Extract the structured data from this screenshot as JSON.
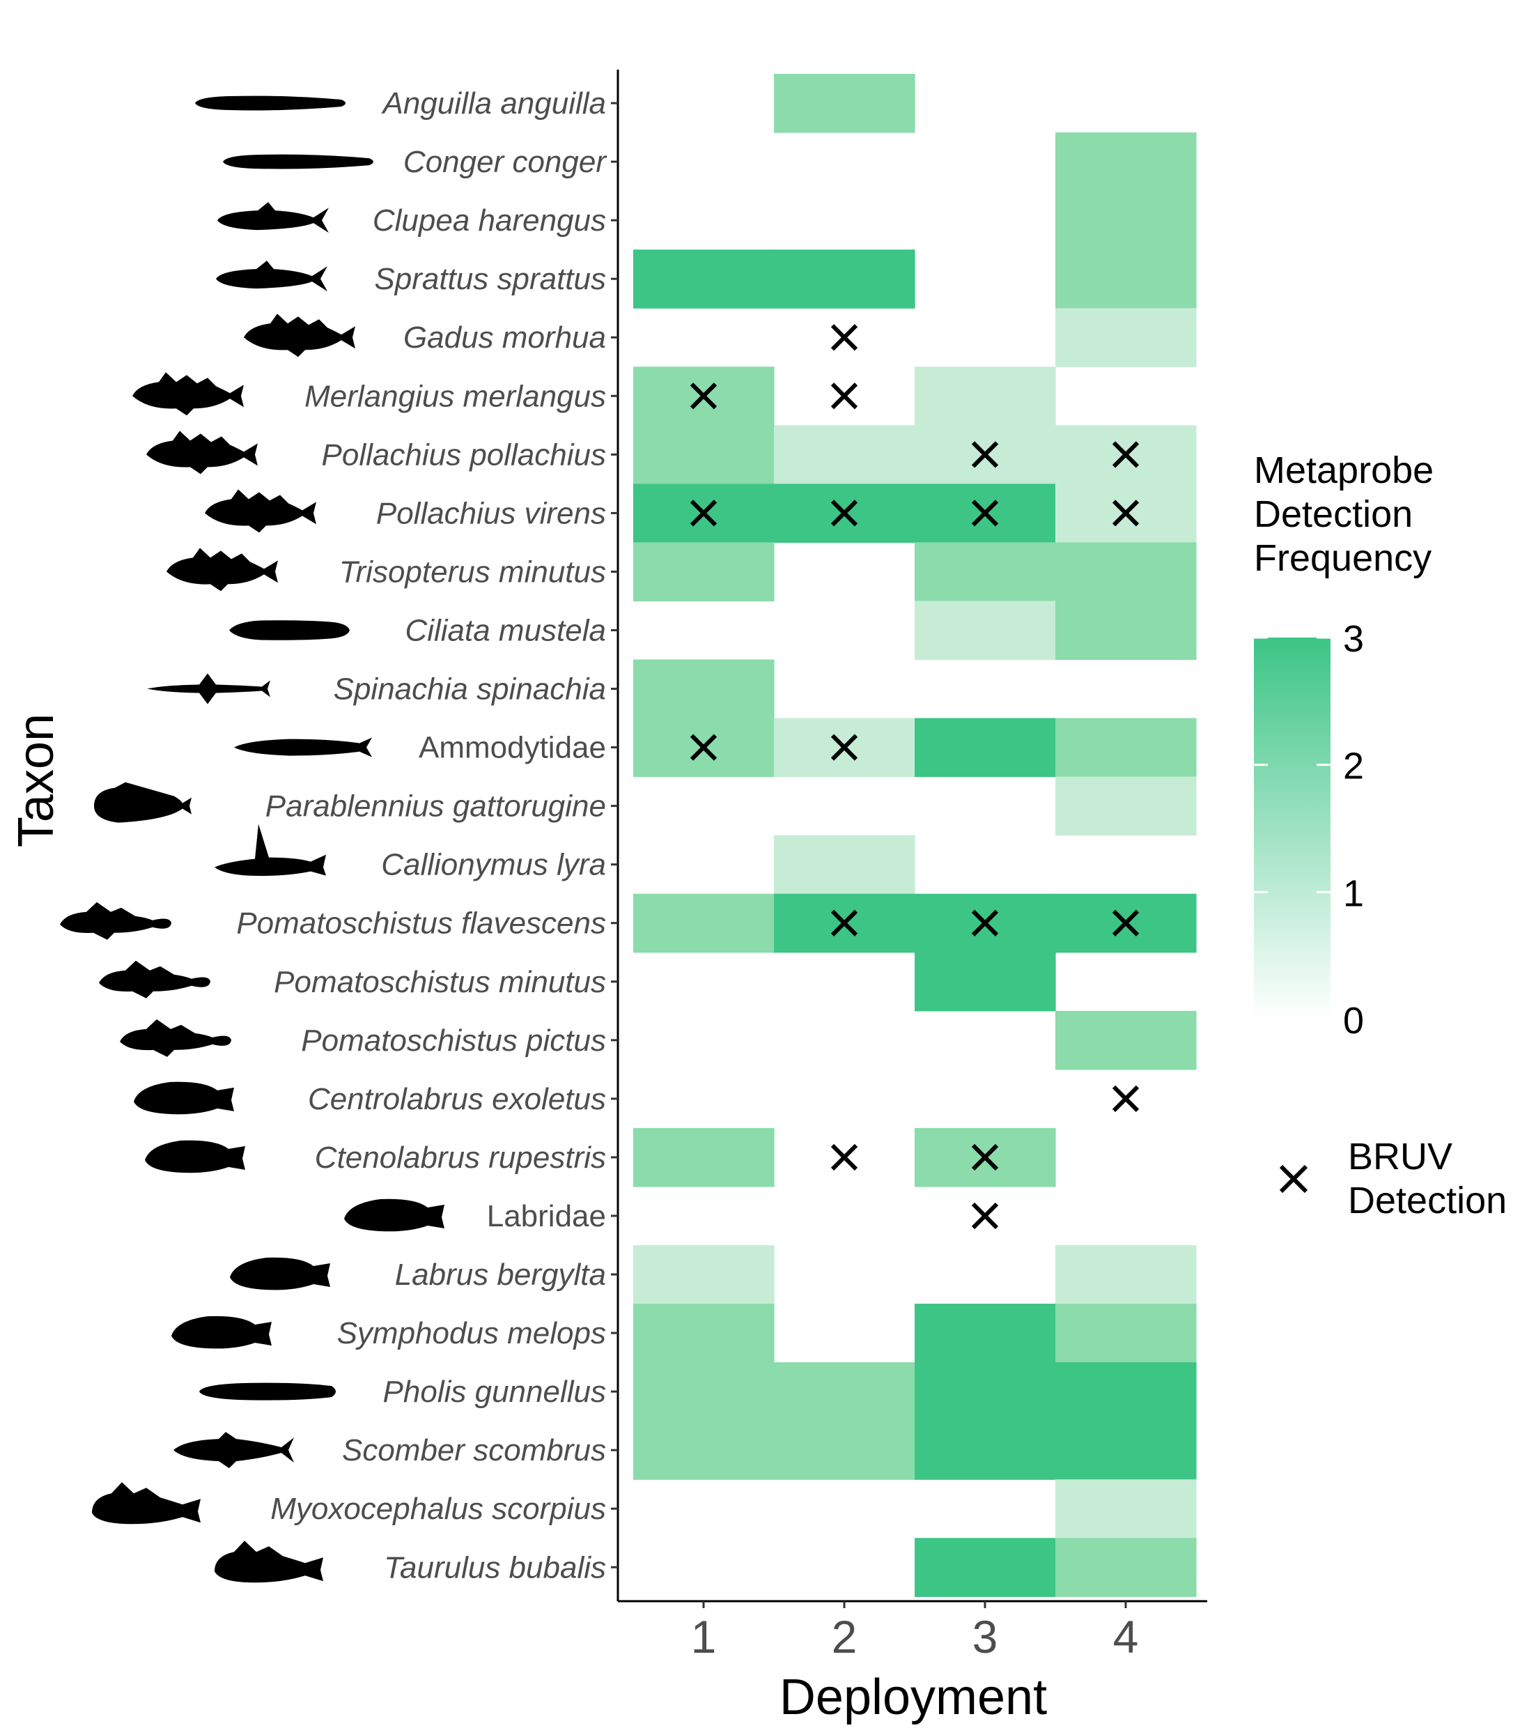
{
  "chart_data": {
    "type": "heatmap",
    "title": "",
    "xlabel": "Deployment",
    "ylabel": "Taxon",
    "x_categories": [
      "1",
      "2",
      "3",
      "4"
    ],
    "taxa": [
      {
        "name": "Anguilla anguilla",
        "italic": true,
        "silhouette": "eel-icon"
      },
      {
        "name": "Conger conger",
        "italic": true,
        "silhouette": "eel-icon"
      },
      {
        "name": "Clupea harengus",
        "italic": true,
        "silhouette": "herring-icon"
      },
      {
        "name": "Sprattus sprattus",
        "italic": true,
        "silhouette": "herring-icon"
      },
      {
        "name": "Gadus morhua",
        "italic": true,
        "silhouette": "cod-icon"
      },
      {
        "name": "Merlangius merlangus",
        "italic": true,
        "silhouette": "cod-icon"
      },
      {
        "name": "Pollachius pollachius",
        "italic": true,
        "silhouette": "cod-icon"
      },
      {
        "name": "Pollachius virens",
        "italic": true,
        "silhouette": "cod-icon"
      },
      {
        "name": "Trisopterus minutus",
        "italic": true,
        "silhouette": "cod-icon"
      },
      {
        "name": "Ciliata mustela",
        "italic": true,
        "silhouette": "rockling-icon"
      },
      {
        "name": "Spinachia spinachia",
        "italic": true,
        "silhouette": "stickleback-icon"
      },
      {
        "name": "Ammodytidae",
        "italic": false,
        "silhouette": "sandeel-icon"
      },
      {
        "name": "Parablennius gattorugine",
        "italic": true,
        "silhouette": "blenny-icon"
      },
      {
        "name": "Callionymus lyra",
        "italic": true,
        "silhouette": "dragonet-icon"
      },
      {
        "name": "Pomatoschistus flavescens",
        "italic": true,
        "silhouette": "goby-icon"
      },
      {
        "name": "Pomatoschistus minutus",
        "italic": true,
        "silhouette": "goby-icon"
      },
      {
        "name": "Pomatoschistus pictus",
        "italic": true,
        "silhouette": "goby-icon"
      },
      {
        "name": "Centrolabrus exoletus",
        "italic": true,
        "silhouette": "wrasse-icon"
      },
      {
        "name": "Ctenolabrus rupestris",
        "italic": true,
        "silhouette": "wrasse-icon"
      },
      {
        "name": "Labridae",
        "italic": false,
        "silhouette": "wrasse-icon"
      },
      {
        "name": "Labrus bergylta",
        "italic": true,
        "silhouette": "wrasse-icon"
      },
      {
        "name": "Symphodus melops",
        "italic": true,
        "silhouette": "wrasse-icon"
      },
      {
        "name": "Pholis gunnellus",
        "italic": true,
        "silhouette": "butterfish-icon"
      },
      {
        "name": "Scomber scombrus",
        "italic": true,
        "silhouette": "mackerel-icon"
      },
      {
        "name": "Myoxocephalus scorpius",
        "italic": true,
        "silhouette": "sculpin-icon"
      },
      {
        "name": "Taurulus bubalis",
        "italic": true,
        "silhouette": "sculpin-icon"
      }
    ],
    "values": [
      [
        0,
        2,
        0,
        0
      ],
      [
        0,
        0,
        0,
        2
      ],
      [
        0,
        0,
        0,
        2
      ],
      [
        3,
        3,
        0,
        2
      ],
      [
        0,
        0,
        0,
        1
      ],
      [
        2,
        0,
        1,
        0
      ],
      [
        2,
        1,
        1,
        1
      ],
      [
        3,
        3,
        3,
        1
      ],
      [
        2,
        0,
        2,
        2
      ],
      [
        0,
        0,
        1,
        2
      ],
      [
        2,
        0,
        0,
        0
      ],
      [
        2,
        1,
        3,
        2
      ],
      [
        0,
        0,
        0,
        1
      ],
      [
        0,
        1,
        0,
        0
      ],
      [
        2,
        3,
        3,
        3
      ],
      [
        0,
        0,
        3,
        0
      ],
      [
        0,
        0,
        0,
        2
      ],
      [
        0,
        0,
        0,
        0
      ],
      [
        2,
        0,
        2,
        0
      ],
      [
        0,
        0,
        0,
        0
      ],
      [
        1,
        0,
        0,
        1
      ],
      [
        2,
        0,
        3,
        2
      ],
      [
        2,
        2,
        3,
        3
      ],
      [
        2,
        2,
        3,
        3
      ],
      [
        0,
        0,
        0,
        1
      ],
      [
        0,
        0,
        3,
        2
      ]
    ],
    "bruv_detections": [
      [
        0,
        0,
        0,
        0
      ],
      [
        0,
        0,
        0,
        0
      ],
      [
        0,
        0,
        0,
        0
      ],
      [
        0,
        0,
        0,
        0
      ],
      [
        0,
        1,
        0,
        0
      ],
      [
        1,
        1,
        0,
        0
      ],
      [
        0,
        0,
        1,
        1
      ],
      [
        1,
        1,
        1,
        1
      ],
      [
        0,
        0,
        0,
        0
      ],
      [
        0,
        0,
        0,
        0
      ],
      [
        0,
        0,
        0,
        0
      ],
      [
        1,
        1,
        0,
        0
      ],
      [
        0,
        0,
        0,
        0
      ],
      [
        0,
        0,
        0,
        0
      ],
      [
        0,
        1,
        1,
        1
      ],
      [
        0,
        0,
        0,
        0
      ],
      [
        0,
        0,
        0,
        0
      ],
      [
        0,
        0,
        0,
        1
      ],
      [
        0,
        1,
        1,
        0
      ],
      [
        0,
        0,
        1,
        0
      ],
      [
        0,
        0,
        0,
        0
      ],
      [
        0,
        0,
        0,
        0
      ],
      [
        0,
        0,
        0,
        0
      ],
      [
        0,
        0,
        0,
        0
      ],
      [
        0,
        0,
        0,
        0
      ],
      [
        0,
        0,
        0,
        0
      ]
    ],
    "colorbar": {
      "title_lines": [
        "Metaprobe",
        "Detection",
        "Frequency"
      ],
      "min": 0,
      "max": 3,
      "ticks": [
        "0",
        "1",
        "2",
        "3"
      ],
      "low_color": "#ffffff",
      "high_color": "#3cc585"
    },
    "cell_colors": [
      "#ffffff",
      "#c6ecd6",
      "#8bdbab",
      "#3cc585"
    ],
    "marker_legend": {
      "symbol": "×",
      "label_lines": [
        "BRUV",
        "Detection"
      ]
    },
    "legend_position": "right",
    "grid": false
  }
}
